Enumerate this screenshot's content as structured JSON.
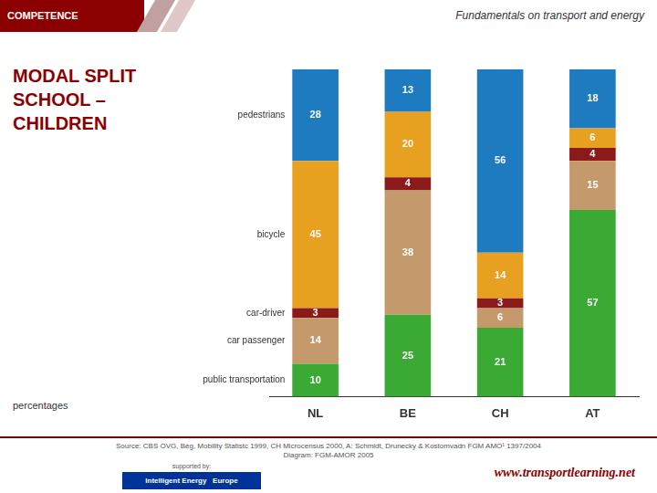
{
  "chart_data": {
    "type": "bar",
    "stacked": true,
    "title": "MODAL SPLIT\nSCHOOL –\nCHILDREN",
    "subtitle": "percentages",
    "categories": [
      "NL",
      "BE",
      "CH",
      "AT"
    ],
    "series": [
      {
        "name": "public transportation",
        "color": "#3aaa35",
        "values": [
          10,
          25,
          21,
          57
        ]
      },
      {
        "name": "car passenger",
        "color": "#c49a6c",
        "values": [
          14,
          38,
          6,
          15
        ]
      },
      {
        "name": "car-driver",
        "color": "#8b1a1a",
        "values": [
          3,
          4,
          3,
          4
        ]
      },
      {
        "name": "bicycle",
        "color": "#e8a020",
        "values": [
          45,
          20,
          14,
          6
        ]
      },
      {
        "name": "pedestrians",
        "color": "#1e7bbf",
        "values": [
          28,
          13,
          56,
          18
        ]
      }
    ],
    "ylim": [
      0,
      105
    ],
    "grid": false,
    "data_labels": true,
    "tick_labels": "x",
    "annotations": [
      "COMPETENCE",
      "Fundamentals on transport and energy",
      "Source: CBS OVG, Bég, Mobility Statistc 1999, CH  Microcensus 2000, A: Schmidt, Drunecky & Kostomvadn FGM AMO¹ 1397/2004\nDiagram: FGM-AMOR 2005",
      "www.transportlearning.net",
      "supported by:",
      "Intelligent Energy   Europe"
    ]
  }
}
